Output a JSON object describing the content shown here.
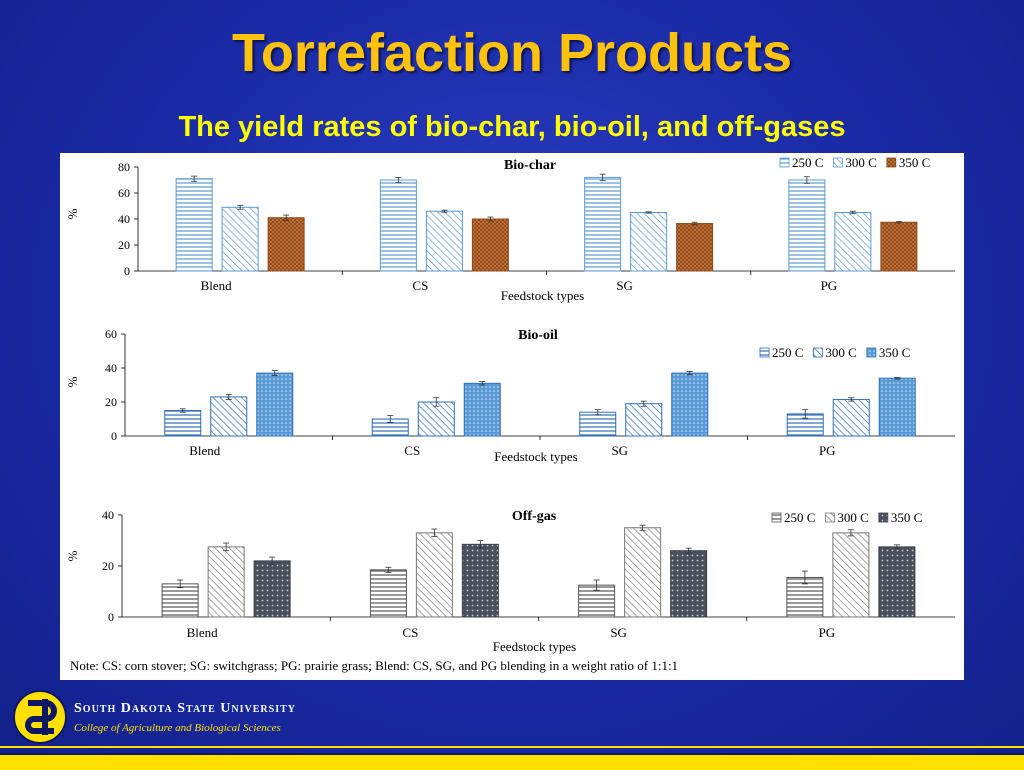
{
  "title": "Torrefaction Products",
  "subtitle": "The yield rates of bio-char, bio-oil, and off-gases",
  "note": "Note: CS: corn stover; SG: switchgrass; PG: prairie grass; Blend: CS, SG, and PG blending in a weight ratio of 1:1:1",
  "footer": {
    "university": "South Dakota State University",
    "college": "College of Agriculture and Biological Sciences"
  },
  "colors": {
    "background": "#1a2aa5",
    "title": "#ffc20e",
    "subtitle": "#ffff00",
    "biochar_350": "#b5652a",
    "biooil_250_300": "#6aa8e0",
    "biooil_350": "#5b9bd5",
    "offgas": "#555555"
  },
  "chart_data": [
    {
      "type": "bar",
      "title": "Bio-char",
      "xlabel": "Feedstock types",
      "ylabel": "%",
      "ylim": [
        0,
        80
      ],
      "yticks": [
        0,
        20,
        40,
        60,
        80
      ],
      "categories": [
        "Blend",
        "CS",
        "SG",
        "PG"
      ],
      "legend_position": "top-right",
      "series": [
        {
          "name": "250 C",
          "values": [
            71,
            70,
            72,
            70
          ],
          "errors": [
            2,
            2,
            2.5,
            2.5
          ]
        },
        {
          "name": "300 C",
          "values": [
            49,
            46,
            45,
            45
          ],
          "errors": [
            1.5,
            0.8,
            0.5,
            1
          ]
        },
        {
          "name": "350 C",
          "values": [
            41,
            40,
            36.5,
            37.5
          ],
          "errors": [
            2,
            1.5,
            1,
            0.5
          ]
        }
      ]
    },
    {
      "type": "bar",
      "title": "Bio-oil",
      "xlabel": "Feedstock types",
      "ylabel": "%",
      "ylim": [
        0,
        60
      ],
      "yticks": [
        0,
        20,
        40,
        60
      ],
      "categories": [
        "Blend",
        "CS",
        "SG",
        "PG"
      ],
      "legend_position": "top-right",
      "series": [
        {
          "name": "250 C",
          "values": [
            15,
            10,
            14,
            13
          ],
          "errors": [
            1,
            2,
            1.5,
            2.5
          ]
        },
        {
          "name": "300 C",
          "values": [
            23,
            20,
            19,
            21.5
          ],
          "errors": [
            1.5,
            2.5,
            1.5,
            1
          ]
        },
        {
          "name": "350 C",
          "values": [
            37,
            31,
            37,
            34
          ],
          "errors": [
            1.5,
            1,
            1,
            0.5
          ]
        }
      ]
    },
    {
      "type": "bar",
      "title": "Off-gas",
      "xlabel": "Feedstock types",
      "ylabel": "%",
      "ylim": [
        0,
        40
      ],
      "yticks": [
        0,
        20,
        40
      ],
      "categories": [
        "Blend",
        "CS",
        "SG",
        "PG"
      ],
      "legend_position": "top-right",
      "series": [
        {
          "name": "250 C",
          "values": [
            13,
            18.5,
            12.5,
            15.5
          ],
          "errors": [
            1.5,
            1,
            2,
            2.5
          ]
        },
        {
          "name": "300 C",
          "values": [
            27.5,
            33,
            35,
            33
          ],
          "errors": [
            1.5,
            1.5,
            1,
            1.2
          ]
        },
        {
          "name": "350 C",
          "values": [
            22,
            28.5,
            26,
            27.5
          ],
          "errors": [
            1.5,
            1.5,
            1,
            0.8
          ]
        }
      ]
    }
  ]
}
